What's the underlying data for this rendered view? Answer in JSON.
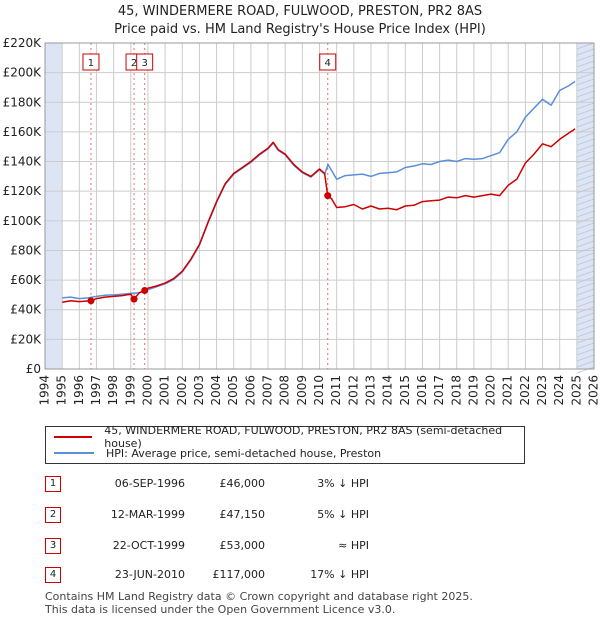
{
  "title_line1": "45, WINDERMERE ROAD, FULWOOD, PRESTON, PR2 8AS",
  "title_line2": "Price paid vs. HM Land Registry's House Price Index (HPI)",
  "colors": {
    "property": "#cc0000",
    "hpi": "#5b8fd6",
    "shade": "#dde5f5",
    "grid": "#cccccc",
    "vline": "#e07070"
  },
  "chart_data": {
    "type": "line",
    "title": "45, WINDERMERE ROAD, FULWOOD, PRESTON, PR2 8AS — Price paid vs. HM Land Registry's House Price Index (HPI)",
    "xlim": [
      1994,
      2026
    ],
    "ylim": [
      0,
      220000
    ],
    "x_ticks": [
      1994,
      1995,
      1996,
      1997,
      1998,
      1999,
      2000,
      2001,
      2002,
      2003,
      2004,
      2005,
      2006,
      2007,
      2008,
      2009,
      2010,
      2011,
      2012,
      2013,
      2014,
      2015,
      2016,
      2017,
      2018,
      2019,
      2020,
      2021,
      2022,
      2023,
      2024,
      2025,
      2026
    ],
    "y_ticks": [
      0,
      20000,
      40000,
      60000,
      80000,
      100000,
      120000,
      140000,
      160000,
      180000,
      200000,
      220000
    ],
    "y_tick_labels": [
      "£0",
      "£20K",
      "£40K",
      "£60K",
      "£80K",
      "£100K",
      "£120K",
      "£140K",
      "£160K",
      "£180K",
      "£200K",
      "£220K"
    ],
    "shaded_x_ranges": [
      [
        1994,
        1995
      ],
      [
        2025,
        2026
      ]
    ],
    "series": [
      {
        "name": "45, WINDERMERE ROAD, FULWOOD, PRESTON, PR2 8AS (semi-detached house)",
        "color": "#cc0000",
        "x": [
          1995.0,
          1995.5,
          1996.0,
          1996.68,
          1997.0,
          1997.5,
          1998.0,
          1998.5,
          1999.0,
          1999.19,
          1999.5,
          1999.81,
          2000.0,
          2000.5,
          2001.0,
          2001.5,
          2002.0,
          2002.5,
          2003.0,
          2003.5,
          2004.0,
          2004.5,
          2005.0,
          2005.5,
          2006.0,
          2006.5,
          2007.0,
          2007.3,
          2007.6,
          2008.0,
          2008.5,
          2009.0,
          2009.5,
          2010.0,
          2010.3,
          2010.48,
          2010.7,
          2011.0,
          2011.5,
          2012.0,
          2012.5,
          2013.0,
          2013.5,
          2014.0,
          2014.5,
          2015.0,
          2015.5,
          2016.0,
          2016.5,
          2017.0,
          2017.5,
          2018.0,
          2018.5,
          2019.0,
          2019.5,
          2020.0,
          2020.5,
          2021.0,
          2021.5,
          2022.0,
          2022.5,
          2023.0,
          2023.5,
          2024.0,
          2024.5,
          2024.9
        ],
        "y": [
          45000,
          46000,
          45500,
          46000,
          47500,
          48500,
          49000,
          49500,
          50500,
          47150,
          51500,
          53000,
          54500,
          56000,
          58000,
          61000,
          66000,
          74000,
          84000,
          99000,
          113000,
          125000,
          132000,
          136000,
          140000,
          145000,
          149000,
          153000,
          148000,
          145000,
          138000,
          133000,
          130000,
          135000,
          132000,
          117000,
          115000,
          109000,
          109500,
          111000,
          108000,
          110000,
          108000,
          108500,
          107500,
          110000,
          110500,
          113000,
          113500,
          114000,
          116000,
          115500,
          117000,
          116000,
          117000,
          118000,
          117000,
          124000,
          128000,
          139000,
          145000,
          152000,
          150000,
          155000,
          159000,
          162000
        ]
      },
      {
        "name": "HPI: Average price, semi-detached house, Preston",
        "color": "#5b8fd6",
        "x": [
          1995.0,
          1995.5,
          1996.0,
          1996.5,
          1997.0,
          1997.5,
          1998.0,
          1998.5,
          1999.0,
          1999.5,
          2000.0,
          2000.5,
          2001.0,
          2001.5,
          2002.0,
          2002.5,
          2003.0,
          2003.5,
          2004.0,
          2004.5,
          2005.0,
          2005.5,
          2006.0,
          2006.5,
          2007.0,
          2007.3,
          2007.6,
          2008.0,
          2008.5,
          2009.0,
          2009.5,
          2010.0,
          2010.3,
          2010.5,
          2010.7,
          2011.0,
          2011.5,
          2012.0,
          2012.5,
          2013.0,
          2013.5,
          2014.0,
          2014.5,
          2015.0,
          2015.5,
          2016.0,
          2016.5,
          2017.0,
          2017.5,
          2018.0,
          2018.5,
          2019.0,
          2019.5,
          2020.0,
          2020.5,
          2021.0,
          2021.5,
          2022.0,
          2022.5,
          2023.0,
          2023.5,
          2024.0,
          2024.5,
          2024.9
        ],
        "y": [
          48000,
          48500,
          47500,
          48000,
          49000,
          49800,
          50000,
          50500,
          51000,
          51500,
          53500,
          55500,
          57500,
          60500,
          65500,
          73500,
          83500,
          98500,
          112500,
          124500,
          131500,
          135500,
          139500,
          144500,
          148500,
          152500,
          147500,
          144500,
          137500,
          132500,
          129500,
          134500,
          131500,
          138000,
          134000,
          128000,
          130500,
          131000,
          131500,
          130000,
          132000,
          132500,
          133000,
          136000,
          137000,
          138500,
          138000,
          140000,
          141000,
          140000,
          142000,
          141500,
          142000,
          144000,
          146000,
          155000,
          160000,
          170000,
          176000,
          182000,
          178000,
          188000,
          191000,
          194000
        ]
      }
    ],
    "sales": [
      {
        "num": "1",
        "date": "06-SEP-1996",
        "x": 1996.68,
        "price_value": 46000,
        "price": "£46,000",
        "hpi": "3% ↓ HPI"
      },
      {
        "num": "2",
        "date": "12-MAR-1999",
        "x": 1999.19,
        "price_value": 47150,
        "price": "£47,150",
        "hpi": "5% ↓ HPI"
      },
      {
        "num": "3",
        "date": "22-OCT-1999",
        "x": 1999.81,
        "price_value": 53000,
        "price": "£53,000",
        "hpi": "≈ HPI"
      },
      {
        "num": "4",
        "date": "23-JUN-2010",
        "x": 2010.48,
        "price_value": 117000,
        "price": "£117,000",
        "hpi": "17% ↓ HPI"
      }
    ]
  },
  "legend": {
    "property_label": "45, WINDERMERE ROAD, FULWOOD, PRESTON, PR2 8AS (semi-detached house)",
    "hpi_label": "HPI: Average price, semi-detached house, Preston"
  },
  "footer": {
    "line1": "Contains HM Land Registry data © Crown copyright and database right 2025.",
    "line2": "This data is licensed under the Open Government Licence v3.0."
  }
}
